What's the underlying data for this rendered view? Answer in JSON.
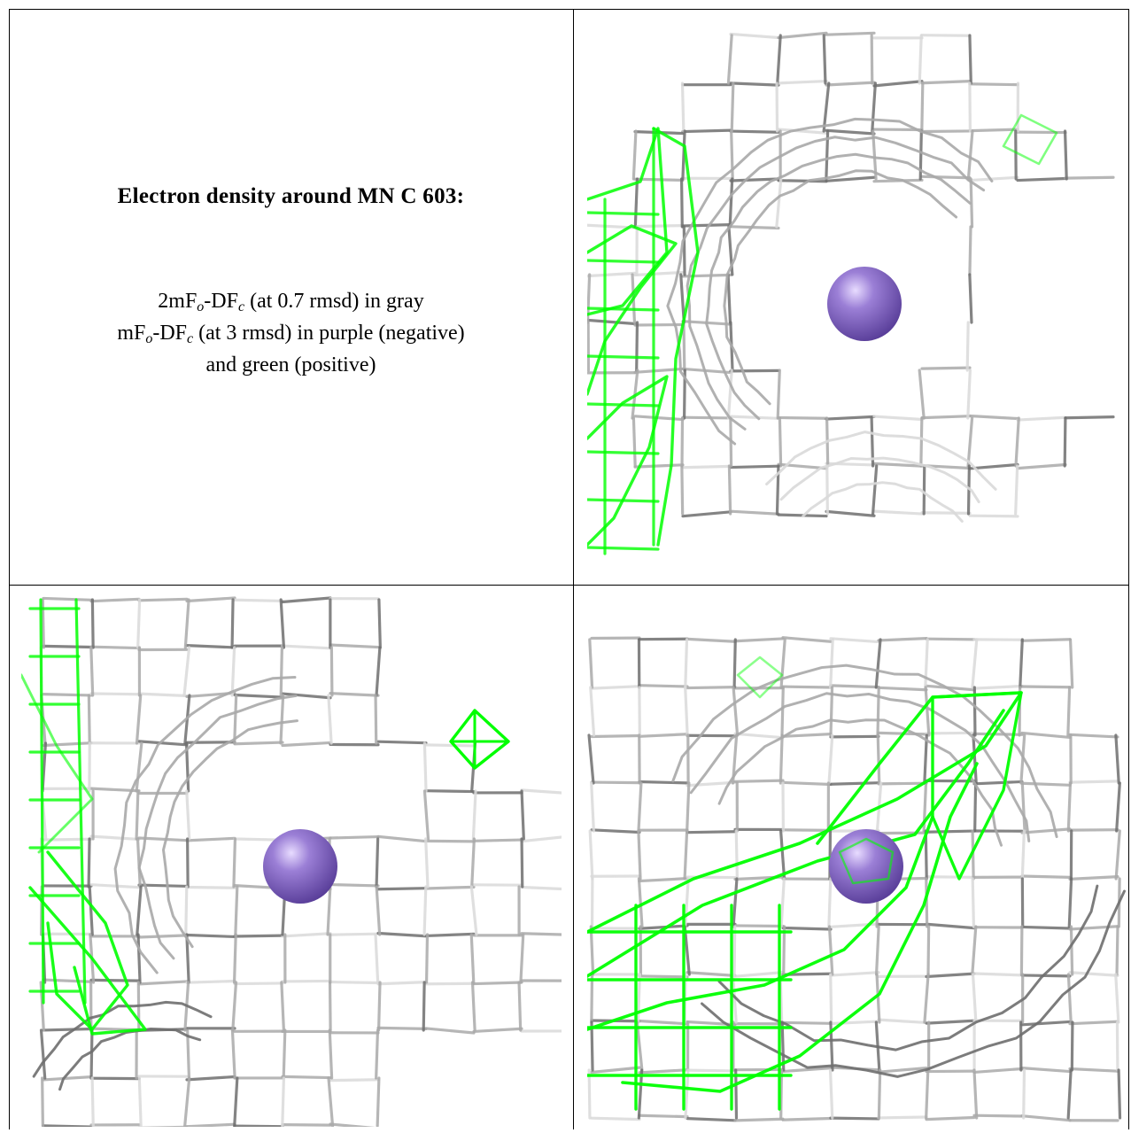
{
  "caption": {
    "title": "Electron density around MN C 603:",
    "line1_prefix": "2mF",
    "line1_sub1": "o",
    "line1_mid": "-DF",
    "line1_sub2": "c",
    "line1_suffix": " (at 0.7 rmsd) in gray",
    "line2_prefix": "mF",
    "line2_sub1": "o",
    "line2_mid": "-DF",
    "line2_sub2": "c",
    "line2_suffix": " (at 3 rmsd) in purple (negative)",
    "line3": "and green (positive)"
  },
  "colors": {
    "mesh_gray": "#a9a9a9",
    "mesh_dark": "#6e6e6e",
    "mesh_light": "#d9d9d9",
    "mesh_green": "#00ff00",
    "atom_purple": "#9b7fd6",
    "atom_highlight": "#e8dcff",
    "border": "#000000"
  },
  "panels": [
    {
      "name": "view-top-right",
      "atom": "MN"
    },
    {
      "name": "view-bottom-left",
      "atom": "MN"
    },
    {
      "name": "view-bottom-right",
      "atom": "MN"
    }
  ]
}
